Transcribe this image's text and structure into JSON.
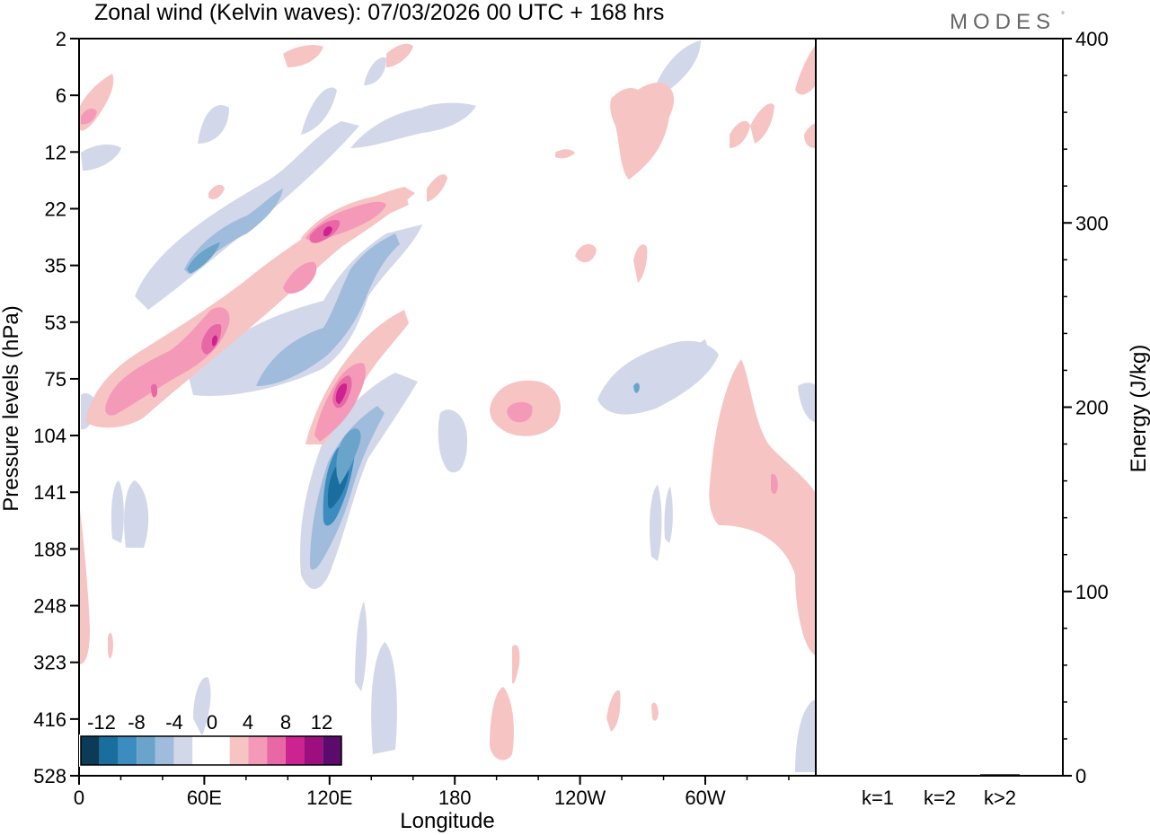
{
  "brand": "MODES",
  "brand_mark": "°",
  "chart_data": {
    "type": "heatmap",
    "title": "Zonal wind (Kelvin waves):  07/03/2026  00 UTC  + 168 hrs",
    "xlabel": "Longitude",
    "ylabel": "Pressure levels (hPa)",
    "x_ticks": [
      "0",
      "60E",
      "120E",
      "180",
      "120W",
      "60W"
    ],
    "x_tick_values": [
      0,
      60,
      120,
      180,
      240,
      300
    ],
    "xlim": [
      0,
      360
    ],
    "y_ticks": [
      "2",
      "6",
      "12",
      "22",
      "35",
      "53",
      "75",
      "104",
      "141",
      "188",
      "248",
      "323",
      "416",
      "528"
    ],
    "colorbar": {
      "labels": [
        "-12",
        "-8",
        "-4",
        "0",
        "4",
        "8",
        "12"
      ],
      "levels": [
        -14,
        -12,
        -10,
        -8,
        -6,
        -4,
        -2,
        2,
        4,
        6,
        8,
        10,
        12,
        14
      ],
      "colors": [
        "#0c3b57",
        "#1a6e9e",
        "#3c8cc0",
        "#6aa4cb",
        "#9fbcdc",
        "#d3d7ea",
        "#ffffff",
        "#ffffff",
        "#f7c4c4",
        "#f49ab8",
        "#e868a5",
        "#cc2390",
        "#9e0e7f",
        "#5c0a6b"
      ]
    },
    "features": [
      {
        "name": "negative-anomaly-core-near-125E",
        "lon": 125,
        "level_hPa": 141,
        "value": -12
      },
      {
        "name": "positive-anomaly-core-near-125E",
        "lon": 126,
        "level_hPa": 80,
        "value": 10
      },
      {
        "name": "positive-anomaly-upper-near-120E",
        "lon": 121,
        "level_hPa": 25,
        "value": 10
      },
      {
        "name": "positive-anomaly-near-65E",
        "lon": 66,
        "level_hPa": 58,
        "value": 8
      },
      {
        "name": "negative-anomaly-near-65E",
        "lon": 65,
        "level_hPa": 25,
        "value": -6
      },
      {
        "name": "positive-anomaly-near-150W",
        "lon": 207,
        "level_hPa": 95,
        "value": 6
      }
    ],
    "energy_panel": {
      "ylabel": "Energy (J/kg)",
      "ylim": [
        0,
        400
      ],
      "y_ticks": [
        "0",
        "100",
        "200",
        "300",
        "400"
      ],
      "categories": [
        "k=1",
        "k=2",
        "k>2"
      ],
      "values": [
        0.3,
        0.2,
        0.8
      ]
    }
  }
}
